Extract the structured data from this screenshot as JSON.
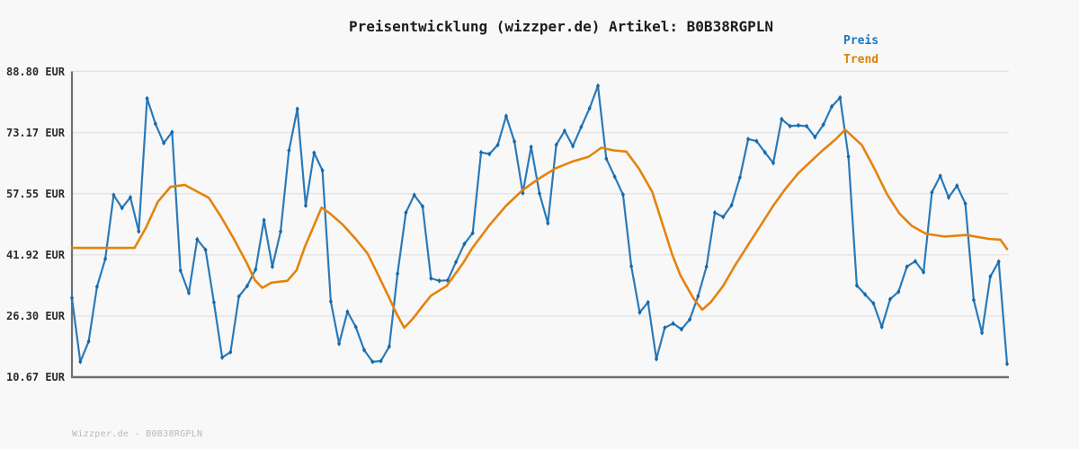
{
  "header": {
    "title": "Preisentwicklung (wizzper.de) Artikel: B0B38RGPLN"
  },
  "footer": {
    "watermark": "Wizzper.de - B0B38RGPLN"
  },
  "y_axis": {
    "tick_labels": [
      "88.80 EUR",
      "73.17 EUR",
      "57.55 EUR",
      "41.92 EUR",
      "26.30 EUR",
      "10.67 EUR"
    ],
    "tick_values": [
      88.8,
      73.17,
      57.55,
      41.92,
      26.3,
      10.67
    ]
  },
  "colors": {
    "preis_blue": "#2a7ab9",
    "preis_marker_blue": "#1668a8",
    "trend_orange": "#e5830d",
    "legend_preis_text": "#1878c0",
    "legend_trend_text": "#d9820a",
    "grid": "#e3e3e3",
    "axis": "#6f6f6f"
  },
  "chart_data": {
    "type": "line",
    "title": "Preisentwicklung (wizzper.de) Artikel: B0B38RGPLN",
    "xlabel": "",
    "ylabel": "EUR",
    "ylim": [
      10.67,
      88.8
    ],
    "grid": true,
    "legend_position": "top-right",
    "x_tick_labels": [],
    "series": [
      {
        "name": "Preis",
        "style": "line-with-diamond-markers",
        "color": "#2a7ab9",
        "marker_color": "#1668a8",
        "values": [
          30.9,
          14.6,
          19.8,
          33.8,
          40.9,
          57.2,
          53.9,
          56.6,
          47.9,
          81.9,
          75.4,
          70.5,
          73.3,
          37.9,
          32.2,
          45.9,
          43.2,
          29.8,
          15.7,
          17.1,
          31.3,
          34.0,
          38.2,
          50.8,
          38.9,
          47.9,
          68.6,
          79.2,
          54.5,
          68.0,
          63.5,
          30.0,
          19.2,
          27.4,
          23.5,
          17.6,
          14.6,
          14.8,
          18.5,
          37.1,
          52.7,
          57.2,
          54.3,
          35.9,
          35.3,
          35.4,
          40.1,
          44.7,
          47.5,
          68.1,
          67.7,
          70.0,
          77.4,
          70.9,
          57.7,
          69.5,
          57.6,
          50.0,
          70.0,
          73.6,
          69.7,
          74.6,
          79.4,
          85.1,
          66.5,
          61.9,
          57.3,
          39.0,
          27.2,
          29.8,
          15.3,
          23.3,
          24.4,
          22.9,
          25.4,
          31.4,
          38.9,
          52.7,
          51.6,
          54.6,
          61.7,
          71.5,
          71.0,
          68.1,
          65.4,
          76.6,
          74.8,
          75.0,
          74.8,
          72.0,
          75.2,
          79.8,
          82.1,
          67.0,
          34.1,
          31.8,
          29.5,
          23.5,
          30.6,
          32.5,
          38.9,
          40.3,
          37.5,
          57.9,
          62.1,
          56.6,
          59.6,
          55.0,
          30.4,
          22.0,
          36.4,
          40.2,
          14.1
        ]
      },
      {
        "name": "Trend",
        "style": "smooth-line",
        "color": "#e5830d",
        "points": [
          [
            0,
            43.7
          ],
          [
            7.5,
            43.7
          ],
          [
            8.9,
            49.0
          ],
          [
            10.3,
            55.5
          ],
          [
            11.8,
            59.3
          ],
          [
            13.5,
            59.8
          ],
          [
            14.9,
            58.2
          ],
          [
            16.4,
            56.5
          ],
          [
            17.9,
            51.5
          ],
          [
            19.4,
            46.0
          ],
          [
            20.9,
            40.0
          ],
          [
            21.9,
            35.5
          ],
          [
            22.8,
            33.5
          ],
          [
            23.9,
            34.8
          ],
          [
            25.8,
            35.3
          ],
          [
            26.9,
            38.0
          ],
          [
            27.9,
            44.0
          ],
          [
            28.9,
            49.0
          ],
          [
            29.9,
            54.0
          ],
          [
            30.9,
            52.5
          ],
          [
            32.4,
            49.7
          ],
          [
            33.9,
            46.2
          ],
          [
            35.4,
            42.3
          ],
          [
            36.4,
            38.0
          ],
          [
            37.9,
            31.4
          ],
          [
            38.9,
            26.8
          ],
          [
            39.8,
            23.3
          ],
          [
            40.9,
            25.8
          ],
          [
            41.9,
            28.6
          ],
          [
            43.0,
            31.5
          ],
          [
            44.9,
            34.0
          ],
          [
            46.9,
            40.0
          ],
          [
            47.9,
            43.5
          ],
          [
            50.0,
            49.5
          ],
          [
            52.0,
            54.5
          ],
          [
            54.0,
            58.5
          ],
          [
            56.0,
            61.5
          ],
          [
            57.9,
            64.0
          ],
          [
            60.0,
            65.8
          ],
          [
            61.9,
            67.0
          ],
          [
            63.4,
            69.3
          ],
          [
            64.9,
            68.6
          ],
          [
            66.4,
            68.3
          ],
          [
            67.9,
            64.0
          ],
          [
            69.5,
            58.0
          ],
          [
            71.0,
            48.0
          ],
          [
            71.9,
            42.0
          ],
          [
            72.9,
            36.6
          ],
          [
            74.4,
            30.9
          ],
          [
            75.5,
            27.9
          ],
          [
            76.5,
            29.8
          ],
          [
            78.0,
            34.0
          ],
          [
            79.5,
            39.5
          ],
          [
            81.0,
            44.5
          ],
          [
            82.5,
            49.5
          ],
          [
            84.0,
            54.5
          ],
          [
            85.5,
            58.9
          ],
          [
            87.0,
            62.8
          ],
          [
            88.5,
            65.8
          ],
          [
            90.0,
            68.8
          ],
          [
            91.5,
            71.5
          ],
          [
            92.6,
            73.9
          ],
          [
            94.6,
            70.0
          ],
          [
            96.1,
            64.0
          ],
          [
            97.6,
            57.5
          ],
          [
            99.1,
            52.5
          ],
          [
            100.6,
            49.3
          ],
          [
            102.3,
            47.3
          ],
          [
            104.5,
            46.6
          ],
          [
            107.1,
            47.0
          ],
          [
            109.8,
            46.0
          ],
          [
            111.2,
            45.8
          ],
          [
            112,
            43.4
          ]
        ]
      }
    ]
  }
}
